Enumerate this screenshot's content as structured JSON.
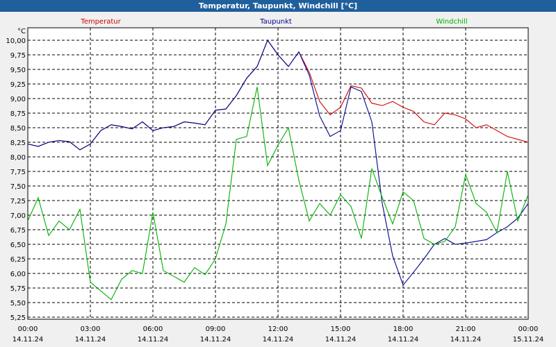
{
  "window": {
    "title": "Temperatur, Taupunkt, Windchill [°C]"
  },
  "chart_data": {
    "type": "line",
    "title": "Temperatur, Taupunkt, Windchill [°C]",
    "ylabel": "°C",
    "ylim": [
      5.25,
      10.0
    ],
    "yticks": [
      "10,00",
      "9,75",
      "9,50",
      "9,25",
      "9,00",
      "8,75",
      "8,50",
      "8,25",
      "8,00",
      "7,75",
      "7,50",
      "7,25",
      "7,00",
      "6,75",
      "6,50",
      "6,25",
      "6,00",
      "5,75",
      "5,50",
      "5,25"
    ],
    "xlim": [
      0,
      24
    ],
    "xticks": [
      {
        "time": "00:00",
        "date": "14.11.24"
      },
      {
        "time": "03:00",
        "date": "14.11.24"
      },
      {
        "time": "06:00",
        "date": "14.11.24"
      },
      {
        "time": "09:00",
        "date": "14.11.24"
      },
      {
        "time": "12:00",
        "date": "14.11.24"
      },
      {
        "time": "15:00",
        "date": "14.11.24"
      },
      {
        "time": "18:00",
        "date": "14.11.24"
      },
      {
        "time": "21:00",
        "date": "14.11.24"
      },
      {
        "time": "00:00",
        "date": "15.11.24"
      }
    ],
    "grid": true,
    "legend_position": "top",
    "series": [
      {
        "name": "Temperatur",
        "color": "#d00000",
        "x": [
          0,
          0.5,
          1,
          1.5,
          2,
          2.5,
          3,
          3.5,
          4,
          4.5,
          5,
          5.5,
          6,
          6.5,
          7,
          7.5,
          8,
          8.5,
          9,
          9.5,
          10,
          10.5,
          11,
          11.5,
          12,
          12.5,
          13,
          13.5,
          14,
          14.5,
          15,
          15.5,
          16,
          16.5,
          17,
          17.5,
          18,
          18.5,
          19,
          19.5,
          20,
          20.5,
          21,
          21.5,
          22,
          22.5,
          23,
          23.5,
          24
        ],
        "y": [
          8.22,
          8.18,
          8.25,
          8.28,
          8.26,
          8.12,
          8.22,
          8.45,
          8.55,
          8.52,
          8.48,
          8.6,
          8.45,
          8.5,
          8.52,
          8.6,
          8.58,
          8.55,
          8.8,
          8.82,
          9.05,
          9.35,
          9.55,
          10.0,
          9.75,
          9.55,
          9.8,
          9.45,
          8.95,
          8.72,
          8.85,
          9.22,
          9.18,
          8.92,
          8.88,
          8.95,
          8.85,
          8.78,
          8.6,
          8.55,
          8.75,
          8.72,
          8.65,
          8.5,
          8.55,
          8.45,
          8.35,
          8.3,
          8.25
        ]
      },
      {
        "name": "Taupunkt",
        "color": "#000090",
        "x": [
          0,
          0.5,
          1,
          1.5,
          2,
          2.5,
          3,
          3.5,
          4,
          4.5,
          5,
          5.5,
          6,
          6.5,
          7,
          7.5,
          8,
          8.5,
          9,
          9.5,
          10,
          10.5,
          11,
          11.5,
          12,
          12.5,
          13,
          13.5,
          14,
          14.5,
          15,
          15.5,
          16,
          16.5,
          17,
          17.5,
          18,
          18.5,
          19,
          19.5,
          20,
          20.5,
          21,
          21.5,
          22,
          22.5,
          23,
          23.5,
          24
        ],
        "y": [
          8.22,
          8.18,
          8.25,
          8.28,
          8.26,
          8.12,
          8.22,
          8.45,
          8.55,
          8.52,
          8.48,
          8.6,
          8.45,
          8.5,
          8.52,
          8.6,
          8.58,
          8.55,
          8.8,
          8.82,
          9.05,
          9.35,
          9.55,
          10.0,
          9.75,
          9.55,
          9.8,
          9.4,
          8.7,
          8.35,
          8.45,
          9.2,
          9.12,
          8.6,
          7.2,
          6.3,
          5.8,
          6.02,
          6.25,
          6.5,
          6.6,
          6.5,
          6.52,
          6.55,
          6.58,
          6.7,
          6.8,
          6.95,
          7.2
        ]
      },
      {
        "name": "Windchill",
        "color": "#00b000",
        "x": [
          0,
          0.5,
          1,
          1.5,
          2,
          2.5,
          3,
          3.5,
          4,
          4.5,
          5,
          5.5,
          6,
          6.5,
          7,
          7.5,
          8,
          8.5,
          9,
          9.5,
          10,
          10.5,
          11,
          11.5,
          12,
          12.5,
          13,
          13.5,
          14,
          14.5,
          15,
          15.5,
          16,
          16.5,
          17,
          17.5,
          18,
          18.5,
          19,
          19.5,
          20,
          20.5,
          21,
          21.5,
          22,
          22.5,
          23,
          23.5,
          24
        ],
        "y": [
          6.9,
          7.3,
          6.65,
          6.9,
          6.75,
          7.1,
          5.85,
          5.7,
          5.55,
          5.9,
          6.05,
          6.0,
          7.05,
          6.05,
          5.95,
          5.85,
          6.1,
          5.98,
          6.25,
          6.85,
          8.3,
          8.35,
          9.2,
          7.85,
          8.2,
          8.5,
          7.6,
          6.9,
          7.2,
          7.0,
          7.35,
          7.15,
          6.6,
          7.8,
          7.3,
          6.85,
          7.4,
          7.25,
          6.6,
          6.5,
          6.55,
          6.8,
          7.7,
          7.2,
          7.05,
          6.7,
          7.75,
          6.9,
          7.35
        ]
      }
    ]
  }
}
